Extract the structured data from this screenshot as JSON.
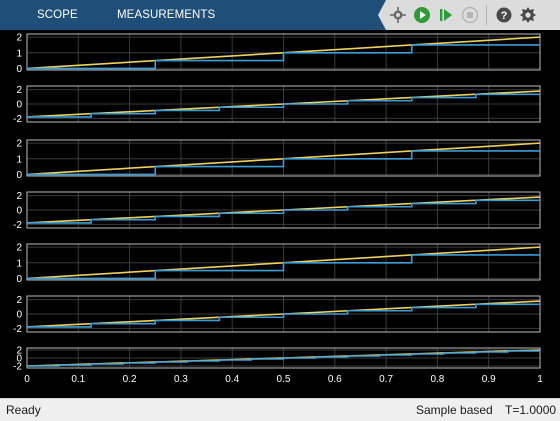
{
  "tabs": [
    {
      "label": "SCOPE"
    },
    {
      "label": "MEASUREMENTS"
    }
  ],
  "toolbar": {
    "icons": [
      "highlight-blocks-icon",
      "run-icon",
      "step-forward-icon",
      "stop-icon",
      "help-icon",
      "settings-icon"
    ]
  },
  "colors": {
    "plot_background": "#000000",
    "grid": "#3a3a3a",
    "series_input": "#edd15f",
    "series_output": "#3b9ed8",
    "axes_tick": "#ffffff",
    "tab_bar": "#1f4f78"
  },
  "status": {
    "ready": "Ready",
    "mode": "Sample based",
    "time": "T=1.0000"
  },
  "chart_data": [
    {
      "type": "line",
      "x_ticks": [
        0,
        0.1,
        0.2,
        0.3,
        0.4,
        0.5,
        0.6,
        0.7,
        0.8,
        0.9,
        1
      ],
      "y_ticks": [
        0,
        1,
        2
      ],
      "ylim": [
        -0.1,
        2.2
      ],
      "xlim": [
        0,
        1
      ],
      "grid": true,
      "series": [
        {
          "x": [
            0,
            1
          ],
          "y": [
            0,
            2
          ]
        },
        {
          "x": [
            0,
            0.25,
            0.25,
            0.5,
            0.5,
            0.75,
            0.75,
            1
          ],
          "y": [
            0,
            0,
            0.5,
            0.5,
            1,
            1,
            1.5,
            1.5
          ]
        }
      ]
    },
    {
      "type": "line",
      "x_ticks": [
        0,
        0.1,
        0.2,
        0.3,
        0.4,
        0.5,
        0.6,
        0.7,
        0.8,
        0.9,
        1
      ],
      "y_ticks": [
        -2,
        0,
        2
      ],
      "ylim": [
        -2.5,
        2.5
      ],
      "xlim": [
        0,
        1
      ],
      "grid": true,
      "series": [
        {
          "x": [
            0,
            1
          ],
          "y": [
            -1.8,
            1.8
          ]
        },
        {
          "x": [
            0,
            0.125,
            0.125,
            0.25,
            0.25,
            0.375,
            0.375,
            0.5,
            0.5,
            0.625,
            0.625,
            0.75,
            0.75,
            0.875,
            0.875,
            1
          ],
          "y": [
            -1.8,
            -1.8,
            -1.35,
            -1.35,
            -0.9,
            -0.9,
            -0.45,
            -0.45,
            0,
            0,
            0.45,
            0.45,
            0.9,
            0.9,
            1.35,
            1.35
          ]
        }
      ]
    },
    {
      "type": "line",
      "x_ticks": [
        0,
        0.1,
        0.2,
        0.3,
        0.4,
        0.5,
        0.6,
        0.7,
        0.8,
        0.9,
        1
      ],
      "y_ticks": [
        0,
        1,
        2
      ],
      "ylim": [
        -0.1,
        2.2
      ],
      "xlim": [
        0,
        1
      ],
      "grid": true,
      "series": [
        {
          "x": [
            0,
            1
          ],
          "y": [
            0,
            2
          ]
        },
        {
          "x": [
            0,
            0.25,
            0.25,
            0.5,
            0.5,
            0.75,
            0.75,
            1
          ],
          "y": [
            0,
            0,
            0.5,
            0.5,
            1,
            1,
            1.5,
            1.5
          ]
        }
      ]
    },
    {
      "type": "line",
      "x_ticks": [
        0,
        0.1,
        0.2,
        0.3,
        0.4,
        0.5,
        0.6,
        0.7,
        0.8,
        0.9,
        1
      ],
      "y_ticks": [
        -2,
        0,
        2
      ],
      "ylim": [
        -2.5,
        2.5
      ],
      "xlim": [
        0,
        1
      ],
      "grid": true,
      "series": [
        {
          "x": [
            0,
            1
          ],
          "y": [
            -1.8,
            1.8
          ]
        },
        {
          "x": [
            0,
            0.125,
            0.125,
            0.25,
            0.25,
            0.375,
            0.375,
            0.5,
            0.5,
            0.625,
            0.625,
            0.75,
            0.75,
            0.875,
            0.875,
            1
          ],
          "y": [
            -1.8,
            -1.8,
            -1.35,
            -1.35,
            -0.9,
            -0.9,
            -0.45,
            -0.45,
            0,
            0,
            0.45,
            0.45,
            0.9,
            0.9,
            1.35,
            1.35
          ]
        }
      ]
    },
    {
      "type": "line",
      "x_ticks": [
        0,
        0.1,
        0.2,
        0.3,
        0.4,
        0.5,
        0.6,
        0.7,
        0.8,
        0.9,
        1
      ],
      "y_ticks": [
        0,
        1,
        2
      ],
      "ylim": [
        -0.1,
        2.2
      ],
      "xlim": [
        0,
        1
      ],
      "grid": true,
      "series": [
        {
          "x": [
            0,
            1
          ],
          "y": [
            0,
            2
          ]
        },
        {
          "x": [
            0,
            0.25,
            0.25,
            0.5,
            0.5,
            0.75,
            0.75,
            1
          ],
          "y": [
            0,
            0,
            0.5,
            0.5,
            1,
            1,
            1.5,
            1.5
          ]
        }
      ]
    },
    {
      "type": "line",
      "x_ticks": [
        0,
        0.1,
        0.2,
        0.3,
        0.4,
        0.5,
        0.6,
        0.7,
        0.8,
        0.9,
        1
      ],
      "y_ticks": [
        -2,
        0,
        2
      ],
      "ylim": [
        -2.5,
        2.5
      ],
      "xlim": [
        0,
        1
      ],
      "grid": true,
      "series": [
        {
          "x": [
            0,
            1
          ],
          "y": [
            -1.8,
            1.8
          ]
        },
        {
          "x": [
            0,
            0.125,
            0.125,
            0.25,
            0.25,
            0.375,
            0.375,
            0.5,
            0.5,
            0.625,
            0.625,
            0.75,
            0.75,
            0.875,
            0.875,
            1
          ],
          "y": [
            -1.8,
            -1.8,
            -1.35,
            -1.35,
            -0.9,
            -0.9,
            -0.45,
            -0.45,
            0,
            0,
            0.45,
            0.45,
            0.9,
            0.9,
            1.35,
            1.35
          ]
        }
      ]
    },
    {
      "type": "line",
      "x_ticks": [
        0,
        0.1,
        0.2,
        0.3,
        0.4,
        0.5,
        0.6,
        0.7,
        0.8,
        0.9,
        1
      ],
      "y_ticks": [
        -2,
        0,
        2
      ],
      "ylim": [
        -2.5,
        2.5
      ],
      "xlim": [
        0,
        1
      ],
      "grid": true,
      "show_x_tick_labels": true,
      "series": [
        {
          "x": [
            0,
            1
          ],
          "y": [
            -2,
            2
          ]
        },
        {
          "x": [
            0,
            0.0625,
            0.0625,
            0.125,
            0.125,
            0.1875,
            0.1875,
            0.25,
            0.25,
            0.3125,
            0.3125,
            0.375,
            0.375,
            0.4375,
            0.4375,
            0.5,
            0.5,
            0.5625,
            0.5625,
            0.625,
            0.625,
            0.6875,
            0.6875,
            0.75,
            0.75,
            0.8125,
            0.8125,
            0.875,
            0.875,
            0.9375,
            0.9375,
            1
          ],
          "y": [
            -2,
            -2,
            -1.75,
            -1.75,
            -1.5,
            -1.5,
            -1.25,
            -1.25,
            -1,
            -1,
            -0.75,
            -0.75,
            -0.5,
            -0.5,
            -0.25,
            -0.25,
            0,
            0,
            0.25,
            0.25,
            0.5,
            0.5,
            0.75,
            0.75,
            1,
            1,
            1.25,
            1.25,
            1.5,
            1.5,
            1.75,
            1.75
          ]
        }
      ]
    }
  ]
}
